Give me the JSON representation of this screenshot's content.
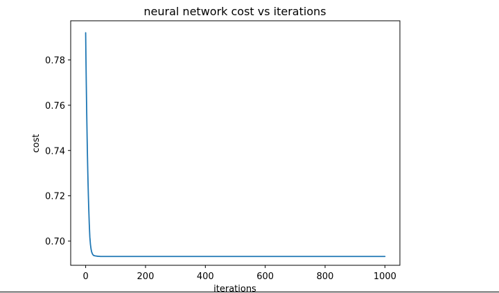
{
  "chart_data": {
    "type": "line",
    "title": "neural network cost vs iterations",
    "xlabel": "iterations",
    "ylabel": "cost",
    "xlim": [
      -50,
      1050
    ],
    "ylim": [
      0.6893,
      0.7973
    ],
    "xticks": [
      0,
      200,
      400,
      600,
      800,
      1000
    ],
    "xtick_labels": [
      "0",
      "200",
      "400",
      "600",
      "800",
      "1000"
    ],
    "yticks": [
      0.7,
      0.72,
      0.74,
      0.76,
      0.78
    ],
    "ytick_labels": [
      "0.70",
      "0.72",
      "0.74",
      "0.76",
      "0.78"
    ],
    "grid": false,
    "series": [
      {
        "color": "#1f77b4",
        "x": [
          0,
          1,
          2,
          3,
          4,
          5,
          6,
          7,
          8,
          9,
          10,
          12,
          14,
          16,
          18,
          20,
          23,
          26,
          30,
          35,
          40,
          50,
          60,
          80,
          100,
          150,
          200,
          300,
          400,
          500,
          600,
          700,
          800,
          900,
          1000
        ],
        "y": [
          0.792,
          0.7805,
          0.7705,
          0.7612,
          0.7527,
          0.7449,
          0.7378,
          0.7314,
          0.7256,
          0.7204,
          0.7157,
          0.7078,
          0.7017,
          0.6985,
          0.6965,
          0.6952,
          0.6942,
          0.6937,
          0.6935,
          0.6934,
          0.6933,
          0.6932,
          0.6932,
          0.6932,
          0.6932,
          0.6932,
          0.6932,
          0.6932,
          0.6932,
          0.6932,
          0.6932,
          0.6932,
          0.6932,
          0.6932,
          0.6932
        ]
      }
    ]
  }
}
